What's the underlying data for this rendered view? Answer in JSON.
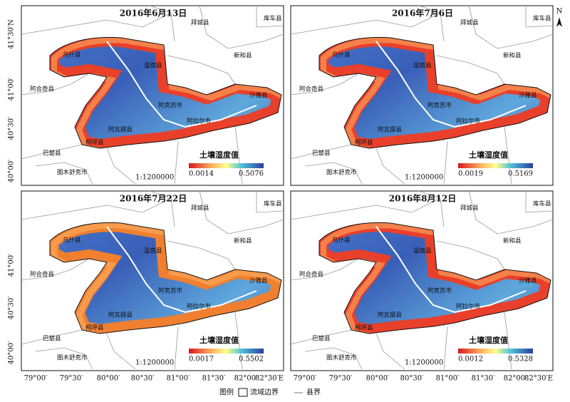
{
  "north": "N",
  "panels": [
    {
      "title": "2016年6月13日",
      "min": "0.0014",
      "max": "0.5076"
    },
    {
      "title": "2016年7月6日",
      "min": "0.0019",
      "max": "0.5169"
    },
    {
      "title": "2016年7月22日",
      "min": "0.0017",
      "max": "0.5502"
    },
    {
      "title": "2016年8月12日",
      "min": "0.0012",
      "max": "0.5328"
    }
  ],
  "colorbar_title": "土壤湿度值",
  "scale": "1:1200000",
  "counties": [
    "拜城县",
    "库车县",
    "新和县",
    "乌什县",
    "温宿县",
    "阿合奇县",
    "阿克苏市",
    "沙雅县",
    "阿拉尔市",
    "阿瓦提县",
    "柯坪县",
    "巴楚县",
    "图木舒克市"
  ],
  "lat_labels": [
    [
      "41°30′N",
      "41°00′",
      "40°30′",
      "40°00′"
    ],
    [
      "41°00′",
      "40°30′",
      "40°00′"
    ]
  ],
  "lon_labels": [
    "79°00′",
    "79°30′",
    "80°00′",
    "80°30′",
    "81°00′",
    "81°30′",
    "82°00′",
    "82°30′E"
  ],
  "legend": {
    "title": "图例",
    "basin": "流域边界",
    "county": "县界"
  }
}
